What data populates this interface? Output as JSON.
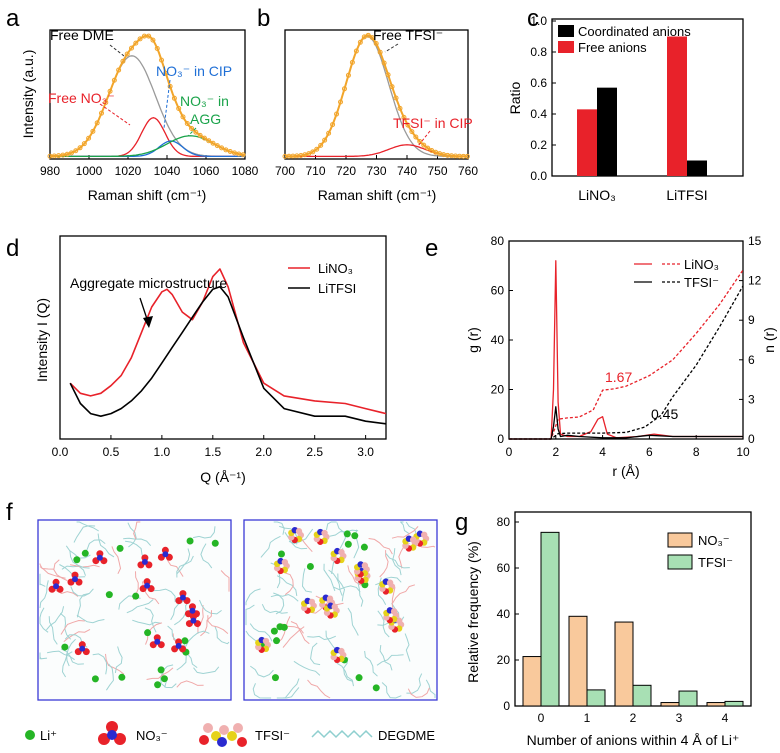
{
  "panel_labels": {
    "a": "a",
    "b": "b",
    "c": "c",
    "d": "d",
    "e": "e",
    "f": "f",
    "g": "g"
  },
  "colors": {
    "orange": "#f2a52a",
    "gray": "#9a9a9a",
    "red": "#e8222a",
    "blue": "#1f6fd6",
    "green": "#1aa34a",
    "black": "#000000",
    "box": "#3a3ad6",
    "orange_bar": "#f9c99c",
    "green_bar": "#a8e0b4"
  },
  "chart_data": [
    {
      "id": "a",
      "type": "line",
      "xlabel": "Raman shift (cm⁻¹)",
      "ylabel": "Intensity (a.u.)",
      "xlim": [
        980,
        1080
      ],
      "xticks": [
        "980",
        "1000",
        "1020",
        "1040",
        "1060",
        "1080"
      ],
      "annotations": [
        "Free DME",
        "NO₃⁻ in CIP",
        "Free NO₃⁻",
        "NO₃⁻ in",
        "AGG"
      ],
      "series": [
        {
          "name": "Free DME",
          "center": 1022,
          "amp": 0.78,
          "width": 12
        },
        {
          "name": "Free NO₃⁻",
          "center": 1033,
          "amp": 0.3,
          "width": 6
        },
        {
          "name": "NO₃⁻ in CIP",
          "center": 1042,
          "amp": 0.12,
          "width": 6
        },
        {
          "name": "NO₃⁻ in AGG",
          "center": 1052,
          "amp": 0.16,
          "width": 12
        }
      ]
    },
    {
      "id": "b",
      "type": "line",
      "xlabel": "Raman shift (cm⁻¹)",
      "xlim": [
        700,
        760
      ],
      "xticks": [
        "700",
        "710",
        "720",
        "730",
        "740",
        "750",
        "760"
      ],
      "annotations": [
        "Free TFSI⁻",
        "TFSI⁻ in CIP"
      ],
      "series": [
        {
          "name": "Free TFSI⁻",
          "center": 727,
          "amp": 0.93,
          "width": 7
        },
        {
          "name": "TFSI⁻ in CIP",
          "center": 740,
          "amp": 0.09,
          "width": 6
        }
      ]
    },
    {
      "id": "c",
      "type": "bar",
      "ylabel": "Ratio",
      "ylim": [
        0,
        1.0
      ],
      "categories": [
        "LiNO₃",
        "LiTFSI"
      ],
      "yticks": [
        "0.0",
        "0.2",
        "0.4",
        "0.6",
        "0.8",
        "1.0"
      ],
      "series": [
        {
          "name": "Free anions",
          "values": [
            0.43,
            0.9
          ]
        },
        {
          "name": "Coordinated anions",
          "values": [
            0.57,
            0.1
          ]
        }
      ]
    },
    {
      "id": "d",
      "type": "line",
      "xlabel": "Q (Å⁻¹)",
      "ylabel": "Intensity I (Q)",
      "xlim": [
        0,
        3.2
      ],
      "xticks": [
        "0.0",
        "0.5",
        "1.0",
        "1.5",
        "2.0",
        "2.5",
        "3.0"
      ],
      "annotation": "Aggregate microstructure",
      "series": [
        {
          "name": "LiNO₃",
          "x": [
            0.1,
            0.2,
            0.3,
            0.4,
            0.5,
            0.6,
            0.7,
            0.8,
            0.9,
            1.0,
            1.05,
            1.1,
            1.2,
            1.3,
            1.4,
            1.5,
            1.57,
            1.65,
            1.8,
            2.0,
            2.2,
            2.5,
            2.8,
            3.0,
            3.2
          ],
          "y": [
            0.22,
            0.18,
            0.17,
            0.18,
            0.21,
            0.25,
            0.32,
            0.42,
            0.52,
            0.58,
            0.59,
            0.57,
            0.5,
            0.47,
            0.54,
            0.64,
            0.67,
            0.6,
            0.38,
            0.22,
            0.17,
            0.15,
            0.14,
            0.12,
            0.1
          ]
        },
        {
          "name": "LiTFSI",
          "x": [
            0.1,
            0.2,
            0.3,
            0.4,
            0.5,
            0.6,
            0.7,
            0.8,
            0.9,
            1.0,
            1.1,
            1.2,
            1.3,
            1.4,
            1.5,
            1.57,
            1.65,
            1.8,
            2.0,
            2.2,
            2.5,
            2.8,
            3.0,
            3.2
          ],
          "y": [
            0.22,
            0.14,
            0.1,
            0.09,
            0.1,
            0.12,
            0.15,
            0.19,
            0.24,
            0.3,
            0.36,
            0.42,
            0.48,
            0.54,
            0.59,
            0.6,
            0.56,
            0.4,
            0.2,
            0.12,
            0.09,
            0.09,
            0.07,
            0.06
          ]
        }
      ]
    },
    {
      "id": "e",
      "type": "line",
      "xlabel": "r (Å)",
      "ylabel": "g (r)",
      "y2label": "n (r)",
      "xlim": [
        0,
        10
      ],
      "ylim": [
        0,
        80
      ],
      "y2lim": [
        0,
        15
      ],
      "xticks": [
        "0",
        "2",
        "4",
        "6",
        "8",
        "10"
      ],
      "yticks": [
        "0",
        "20",
        "40",
        "60",
        "80"
      ],
      "y2ticks": [
        "0",
        "3",
        "6",
        "9",
        "12",
        "15"
      ],
      "annotations": [
        "1.67",
        "0.45"
      ],
      "series": [
        {
          "name": "NO₃⁻ g(r)",
          "x": [
            0,
            1.8,
            1.9,
            2.0,
            2.1,
            2.2,
            2.5,
            3.0,
            3.5,
            3.8,
            4.0,
            4.2,
            4.6,
            5.5,
            6.2,
            7,
            8,
            10
          ],
          "y": [
            0,
            0,
            20,
            72,
            15,
            2,
            1,
            1,
            3,
            8,
            9,
            2,
            0.5,
            1,
            2,
            1,
            1,
            1
          ]
        },
        {
          "name": "NO₃⁻ n(r)",
          "x": [
            0,
            1.8,
            2.1,
            2.5,
            3.0,
            3.6,
            4.0,
            4.5,
            5.0,
            6.0,
            7.0,
            8.0,
            9.0,
            10.0
          ],
          "y": [
            0,
            0,
            1.5,
            1.6,
            1.67,
            2.2,
            3.7,
            3.8,
            4.0,
            4.8,
            6.0,
            8.0,
            10.2,
            12.8
          ]
        },
        {
          "name": "TFSI⁻ g(r)",
          "x": [
            0,
            1.8,
            1.9,
            2.0,
            2.1,
            2.2,
            2.5,
            3.0,
            4.0,
            5.0,
            6.0,
            7.0,
            8.0,
            10.0
          ],
          "y": [
            0,
            0,
            5,
            13,
            4,
            1,
            1.5,
            1,
            0.5,
            0.5,
            1.5,
            1,
            1,
            1
          ]
        },
        {
          "name": "TFSI⁻ n(r)",
          "x": [
            0,
            1.8,
            2.1,
            2.5,
            4.0,
            5.0,
            5.8,
            6.5,
            7.0,
            8.0,
            9.0,
            10.0
          ],
          "y": [
            0,
            0,
            0.4,
            0.45,
            0.45,
            0.5,
            0.9,
            1.8,
            3.2,
            5.6,
            8.5,
            11.6
          ]
        }
      ]
    },
    {
      "id": "g",
      "type": "bar",
      "xlabel": "Number of anions within 4 Å of Li⁺",
      "ylabel": "Relative frequency (%)",
      "ylim": [
        0,
        80
      ],
      "categories": [
        "0",
        "1",
        "2",
        "3",
        "4"
      ],
      "yticks": [
        "0",
        "20",
        "40",
        "60",
        "80"
      ],
      "series": [
        {
          "name": "NO₃⁻",
          "values": [
            21.5,
            39,
            36.5,
            1.5,
            1.5
          ]
        },
        {
          "name": "TFSI⁻",
          "values": [
            75.5,
            7,
            9,
            6.5,
            2
          ]
        }
      ]
    }
  ],
  "legend_f": {
    "li": "Li⁺",
    "no3": "NO₃⁻",
    "tfsi": "TFSI⁻",
    "degdme": "DEGDME"
  }
}
